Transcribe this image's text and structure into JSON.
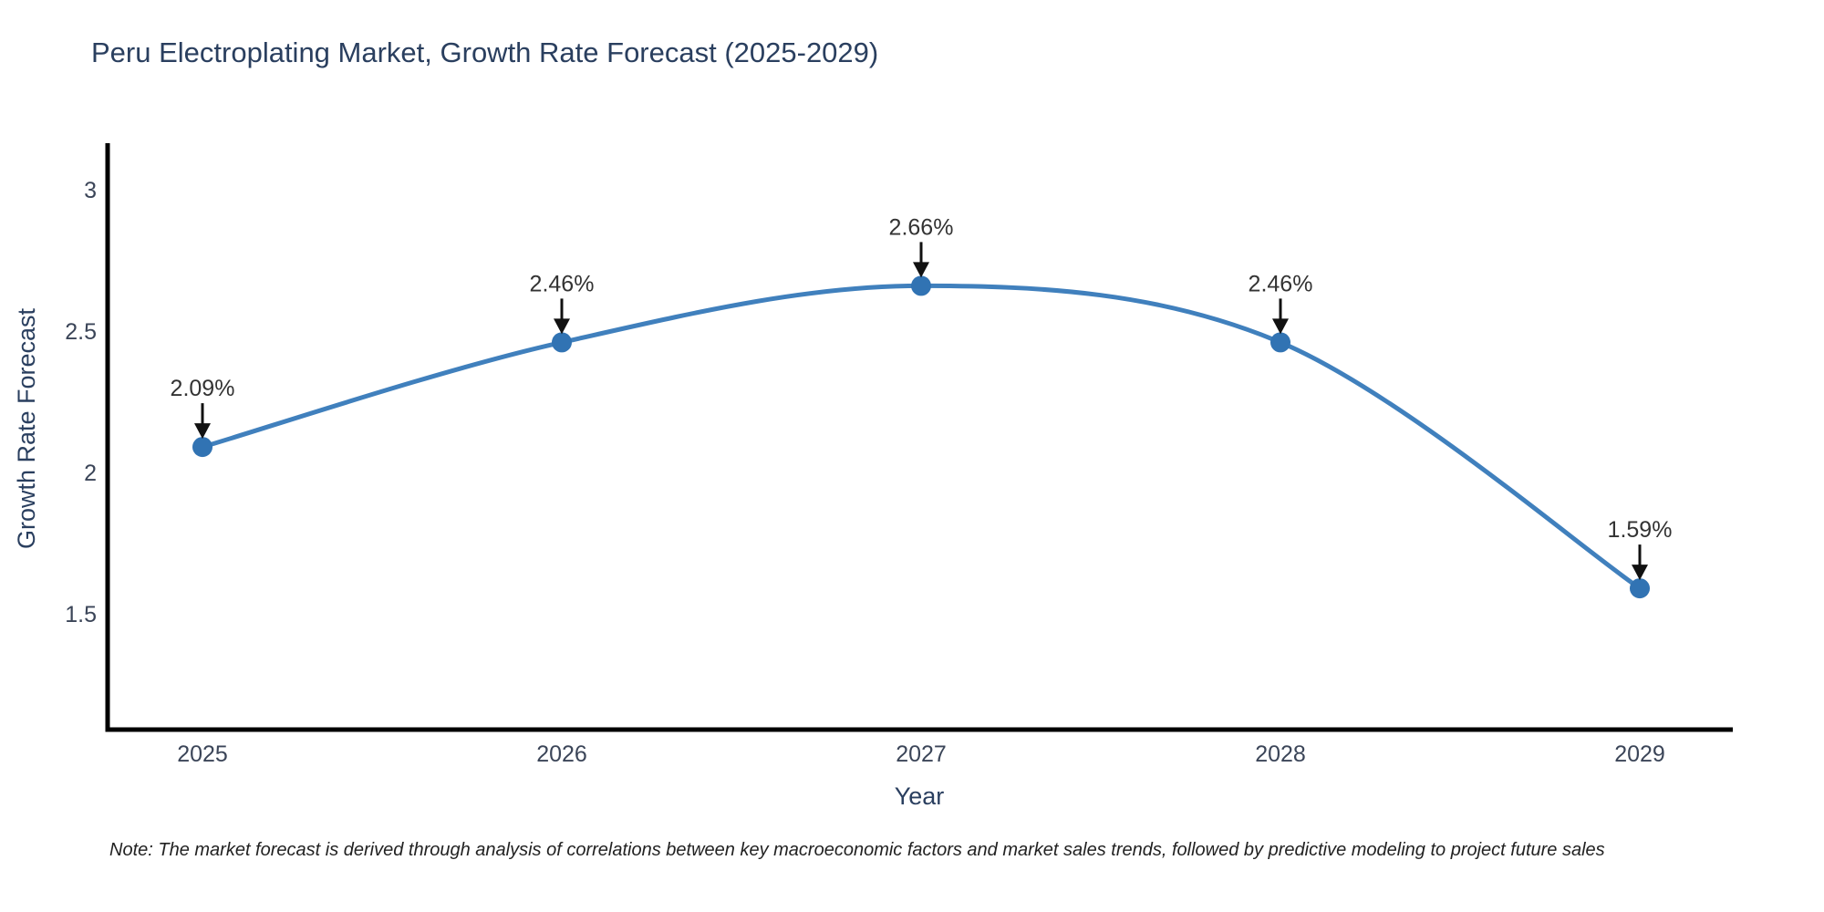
{
  "note": "Note: The market forecast is derived through analysis of correlations between key macroeconomic factors and market sales trends, followed by predictive modeling to project future sales",
  "chart_data": {
    "type": "line",
    "title": "Peru Electroplating Market, Growth Rate Forecast (2025-2029)",
    "xlabel": "Year",
    "ylabel": "Growth Rate Forecast",
    "x": [
      2025,
      2026,
      2027,
      2028,
      2029
    ],
    "series": [
      {
        "name": "Growth Rate Forecast",
        "values": [
          2.09,
          2.46,
          2.66,
          2.46,
          1.59
        ]
      }
    ],
    "point_labels": [
      "2.09%",
      "2.46%",
      "2.66%",
      "2.46%",
      "1.59%"
    ],
    "yticks": [
      3,
      2.5,
      2,
      1.5
    ],
    "ylim": [
      1.08,
      3.17
    ],
    "xlim": [
      2024.74,
      2029.26
    ],
    "grid": false,
    "legend_position": "none",
    "curve": "spline",
    "line_color": "#4080bd",
    "marker_color": "#3173b3",
    "axis_line_color": "#000000",
    "tick_label_color": "#3b4558",
    "title_color": "#2a3f5f",
    "annotation_text_color": "#333333",
    "annotation_arrow_color": "#111111"
  }
}
